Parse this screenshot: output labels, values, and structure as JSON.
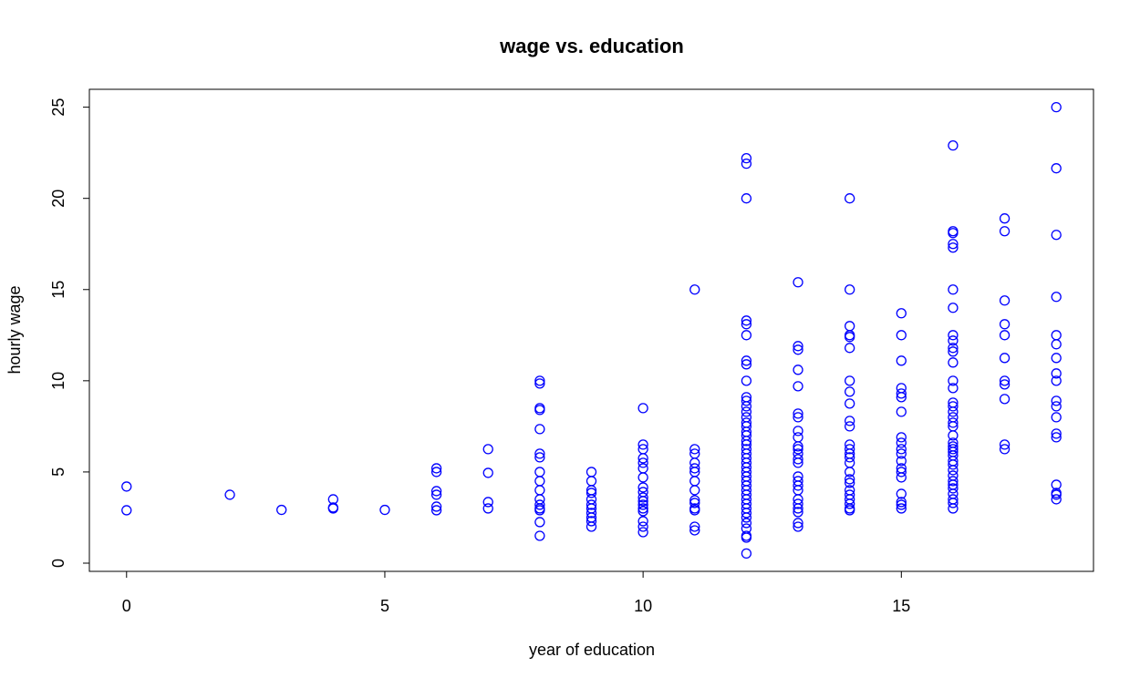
{
  "chart_data": {
    "type": "scatter",
    "title": "wage vs. education",
    "xlabel": "year of education",
    "ylabel": "hourly wage",
    "xlim": [
      -0.72,
      18.72
    ],
    "ylim": [
      -0.45,
      25.98
    ],
    "xticks": [
      0,
      5,
      10,
      15
    ],
    "yticks": [
      0,
      5,
      10,
      15,
      20,
      25
    ],
    "series": [
      {
        "color": "#0000ff",
        "x": [
          0,
          0,
          2,
          3,
          4,
          4,
          4,
          5,
          6,
          6,
          6,
          6,
          6,
          6,
          7,
          7,
          7,
          7,
          8,
          8,
          8,
          8,
          8,
          8,
          8,
          8,
          8,
          8,
          8,
          8,
          8,
          8,
          8,
          8,
          9,
          9,
          9,
          9,
          9,
          9,
          9,
          9,
          9,
          9,
          9,
          10,
          10,
          10,
          10,
          10,
          10,
          10,
          10,
          10,
          10,
          10,
          10,
          10,
          10,
          10,
          10,
          10,
          11,
          11,
          11,
          11,
          11,
          11,
          11,
          11,
          11,
          11,
          11,
          11,
          11,
          11,
          12,
          12,
          12,
          12,
          12,
          12,
          12,
          12,
          12,
          12,
          12,
          12,
          12,
          12,
          12,
          12,
          12,
          12,
          12,
          12,
          12,
          12,
          12,
          12,
          12,
          12,
          12,
          12,
          12,
          12,
          12,
          12,
          12,
          12,
          12,
          12,
          12,
          12,
          12,
          12,
          12,
          13,
          13,
          13,
          13,
          13,
          13,
          13,
          13,
          13,
          13,
          13,
          13,
          13,
          13,
          13,
          13,
          13,
          13,
          13,
          13,
          13,
          13,
          13,
          13,
          14,
          14,
          14,
          14,
          14,
          14,
          14,
          14,
          14,
          14,
          14,
          14,
          14,
          14,
          14,
          14,
          14,
          14,
          14,
          14,
          14,
          14,
          14,
          14,
          14,
          15,
          15,
          15,
          15,
          15,
          15,
          15,
          15,
          15,
          15,
          15,
          15,
          15,
          15,
          15,
          15,
          15,
          15,
          15,
          16,
          16,
          16,
          16,
          16,
          16,
          16,
          16,
          16,
          16,
          16,
          16,
          16,
          16,
          16,
          16,
          16,
          16,
          16,
          16,
          16,
          16,
          16,
          16,
          16,
          16,
          16,
          16,
          16,
          16,
          16,
          16,
          16,
          16,
          16,
          16,
          16,
          17,
          17,
          17,
          17,
          17,
          17,
          17,
          17,
          17,
          17,
          17,
          18,
          18,
          18,
          18,
          18,
          18,
          18,
          18,
          18,
          18,
          18,
          18,
          18,
          18,
          18,
          18,
          18,
          18
        ],
        "y": [
          4.2,
          2.9,
          3.75,
          2.92,
          3.5,
          3.0,
          3.05,
          2.92,
          5.2,
          5.0,
          3.95,
          3.75,
          3.1,
          2.9,
          6.25,
          4.95,
          3.35,
          3.0,
          10.0,
          9.85,
          8.5,
          8.4,
          7.35,
          6.0,
          5.8,
          5.0,
          4.5,
          4.0,
          3.5,
          3.2,
          3.0,
          2.9,
          2.25,
          1.5,
          5.0,
          4.5,
          4.0,
          3.85,
          3.5,
          3.2,
          3.0,
          2.75,
          2.5,
          2.3,
          2.0,
          8.5,
          6.5,
          6.25,
          5.75,
          5.5,
          5.2,
          4.7,
          4.15,
          3.9,
          3.6,
          3.4,
          3.2,
          3.0,
          2.85,
          2.3,
          2.0,
          1.7,
          15.0,
          6.25,
          6.0,
          5.5,
          5.2,
          5.0,
          4.5,
          4.0,
          3.45,
          3.3,
          3.0,
          2.9,
          2.0,
          1.8,
          22.2,
          21.9,
          20.0,
          13.3,
          13.1,
          12.5,
          11.1,
          10.9,
          10.0,
          9.1,
          8.9,
          8.6,
          8.3,
          8.0,
          7.7,
          7.5,
          7.2,
          7.0,
          6.7,
          6.5,
          6.25,
          6.0,
          5.75,
          5.5,
          5.25,
          5.0,
          4.75,
          4.5,
          4.25,
          4.0,
          3.75,
          3.5,
          3.25,
          3.0,
          2.75,
          2.5,
          2.2,
          1.9,
          1.5,
          1.4,
          0.53,
          15.4,
          11.9,
          11.7,
          10.6,
          9.7,
          8.2,
          8.0,
          7.25,
          6.9,
          6.4,
          6.25,
          6.0,
          5.7,
          5.5,
          4.75,
          4.5,
          4.25,
          4.0,
          3.5,
          3.25,
          3.0,
          2.8,
          2.2,
          2.0,
          20.0,
          15.0,
          13.0,
          12.5,
          12.4,
          11.8,
          10.0,
          9.4,
          8.75,
          7.8,
          7.5,
          6.5,
          6.25,
          6.0,
          5.8,
          5.5,
          5.0,
          4.6,
          4.4,
          4.0,
          3.75,
          3.5,
          3.25,
          3.0,
          2.9,
          13.7,
          12.5,
          11.1,
          9.6,
          9.3,
          9.1,
          8.3,
          6.9,
          6.6,
          6.25,
          6.0,
          5.6,
          5.2,
          5.0,
          4.7,
          3.8,
          3.35,
          3.2,
          3.0,
          22.9,
          18.2,
          18.1,
          17.5,
          17.3,
          15.0,
          14.0,
          12.5,
          12.2,
          11.8,
          11.6,
          11.0,
          10.0,
          9.6,
          8.8,
          8.6,
          8.3,
          8.0,
          7.7,
          7.5,
          7.0,
          6.6,
          6.4,
          6.25,
          6.1,
          5.9,
          5.6,
          5.4,
          5.1,
          4.8,
          4.5,
          4.3,
          4.1,
          3.8,
          3.5,
          3.3,
          3.0,
          18.9,
          18.2,
          14.4,
          13.1,
          12.5,
          11.25,
          10.0,
          9.8,
          9.0,
          6.5,
          6.25,
          25.0,
          21.65,
          18.0,
          14.6,
          12.5,
          12.0,
          11.25,
          10.4,
          10.0,
          8.9,
          8.6,
          8.0,
          7.1,
          6.9,
          4.3,
          3.85,
          3.75,
          3.5
        ]
      }
    ]
  }
}
